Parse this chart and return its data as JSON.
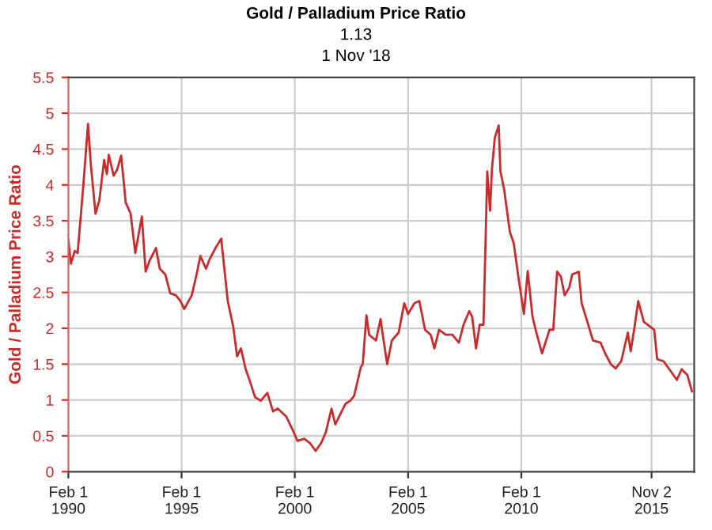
{
  "chart_data": {
    "type": "line",
    "title": "Gold / Palladium Price Ratio",
    "subtitle": "1.13",
    "annotations": [
      "1 Nov '18"
    ],
    "ylabel": "Gold / Palladium Price Ratio",
    "x": [
      "1990-02-01",
      "1990-03-15",
      "1990-05-15",
      "1990-07-01",
      "1990-10-01",
      "1990-12-15",
      "1991-02-01",
      "1991-04-15",
      "1991-06-15",
      "1991-09-01",
      "1991-10-15",
      "1991-11-15",
      "1992-02-01",
      "1992-04-01",
      "1992-06-01",
      "1992-08-15",
      "1992-11-01",
      "1993-01-15",
      "1993-05-01",
      "1993-07-01",
      "1993-09-01",
      "1993-12-15",
      "1994-02-15",
      "1994-05-15",
      "1994-08-01",
      "1994-11-01",
      "1995-01-15",
      "1995-03-15",
      "1995-07-15",
      "1995-10-01",
      "1995-12-01",
      "1996-03-01",
      "1996-05-01",
      "1996-08-01",
      "1996-11-01",
      "1997-02-15",
      "1997-05-15",
      "1997-07-15",
      "1997-09-15",
      "1997-12-01",
      "1998-02-15",
      "1998-05-01",
      "1998-08-01",
      "1998-11-15",
      "1999-02-15",
      "1999-05-01",
      "1999-09-15",
      "2000-01-15",
      "2000-03-15",
      "2000-07-01",
      "2000-10-01",
      "2001-01-01",
      "2001-04-01",
      "2001-06-15",
      "2001-09-15",
      "2001-11-15",
      "2002-02-01",
      "2002-05-01",
      "2002-07-15",
      "2002-09-15",
      "2003-01-01",
      "2003-02-01",
      "2003-04-01",
      "2003-05-15",
      "2003-09-01",
      "2003-11-15",
      "2003-12-15",
      "2004-03-01",
      "2004-05-15",
      "2004-09-01",
      "2004-12-01",
      "2005-02-01",
      "2005-05-15",
      "2005-08-01",
      "2005-11-01",
      "2006-02-01",
      "2006-04-01",
      "2006-06-15",
      "2006-10-01",
      "2007-01-15",
      "2007-05-01",
      "2007-07-15",
      "2007-10-15",
      "2007-12-01",
      "2008-02-01",
      "2008-04-01",
      "2008-06-01",
      "2008-08-01",
      "2008-09-15",
      "2008-10-15",
      "2008-12-01",
      "2009-02-01",
      "2009-03-01",
      "2009-05-01",
      "2009-08-01",
      "2009-10-01",
      "2009-12-15",
      "2010-03-15",
      "2010-05-15",
      "2010-08-01",
      "2010-10-01",
      "2011-01-01",
      "2011-05-01",
      "2011-07-01",
      "2011-09-01",
      "2011-11-01",
      "2012-01-01",
      "2012-03-15",
      "2012-05-01",
      "2012-08-15",
      "2012-10-01",
      "2013-01-01",
      "2013-04-01",
      "2013-08-01",
      "2013-10-15",
      "2014-01-15",
      "2014-04-01",
      "2014-07-01",
      "2014-10-15",
      "2014-12-01",
      "2015-02-01",
      "2015-04-01",
      "2015-07-01",
      "2015-10-15",
      "2015-12-15",
      "2016-02-01",
      "2016-05-15",
      "2016-09-15",
      "2016-12-15",
      "2017-03-01",
      "2017-06-01",
      "2017-08-15"
    ],
    "series": [
      {
        "color": "#cc2a2a",
        "values": [
          3.23,
          2.9,
          3.08,
          3.05,
          4.0,
          4.85,
          4.26,
          3.6,
          3.78,
          4.35,
          4.15,
          4.42,
          4.13,
          4.22,
          4.41,
          3.75,
          3.6,
          3.05,
          3.56,
          2.79,
          2.94,
          3.12,
          2.83,
          2.75,
          2.49,
          2.46,
          2.38,
          2.27,
          2.46,
          2.75,
          3.01,
          2.83,
          2.97,
          3.12,
          3.25,
          2.38,
          2.02,
          1.61,
          1.72,
          1.43,
          1.24,
          1.04,
          0.99,
          1.1,
          0.84,
          0.88,
          0.77,
          0.55,
          0.43,
          0.46,
          0.4,
          0.29,
          0.4,
          0.55,
          0.88,
          0.66,
          0.8,
          0.95,
          0.99,
          1.06,
          1.46,
          1.5,
          2.18,
          1.91,
          1.83,
          2.13,
          1.94,
          1.5,
          1.83,
          1.94,
          2.35,
          2.2,
          2.35,
          2.38,
          1.98,
          1.91,
          1.72,
          1.98,
          1.91,
          1.91,
          1.8,
          2.05,
          2.24,
          2.16,
          1.72,
          2.05,
          2.05,
          4.19,
          3.64,
          4.22,
          4.66,
          4.83,
          4.19,
          3.93,
          3.34,
          3.19,
          2.72,
          2.2,
          2.8,
          2.16,
          1.94,
          1.65,
          1.98,
          1.98,
          2.79,
          2.72,
          2.46,
          2.57,
          2.75,
          2.79,
          2.35,
          2.09,
          1.83,
          1.8,
          1.65,
          1.5,
          1.44,
          1.54,
          1.94,
          1.68,
          2.02,
          2.38,
          2.09,
          2.02,
          1.98,
          1.57,
          1.54,
          1.39,
          1.28,
          1.43,
          1.35,
          1.12
        ]
      }
    ],
    "xlim": [
      "1990-02-01",
      "2017-09-20"
    ],
    "xticks": [
      {
        "value": "1990-02-01",
        "label": "Feb 1\n1990"
      },
      {
        "value": "1995-02-01",
        "label": "Feb 1\n1995"
      },
      {
        "value": "2000-02-01",
        "label": "Feb 1\n2000"
      },
      {
        "value": "2005-02-01",
        "label": "Feb 1\n2005"
      },
      {
        "value": "2010-02-01",
        "label": "Feb 1\n2010"
      },
      {
        "value": "2015-11-02",
        "label": "Nov 2\n2015"
      }
    ],
    "ylim": [
      0,
      5.5
    ],
    "yticks": [
      0,
      0.5,
      1,
      1.5,
      2,
      2.5,
      3,
      3.5,
      4,
      4.5,
      5,
      5.5
    ],
    "grid": true,
    "legend": false,
    "marker": "none",
    "line_style": "solid"
  }
}
